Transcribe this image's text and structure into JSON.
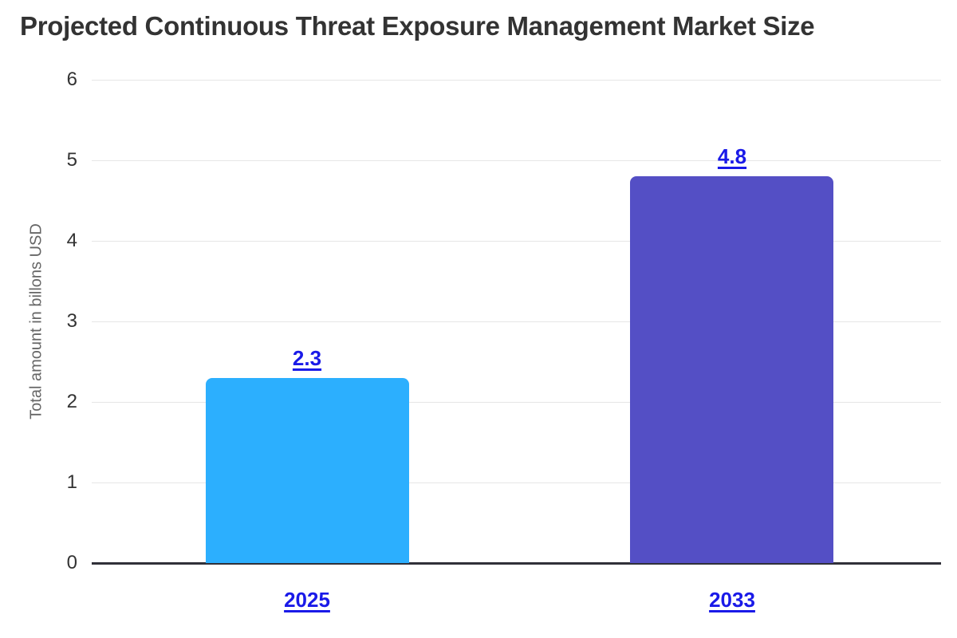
{
  "chart_data": {
    "type": "bar",
    "title": "Projected Continuous Threat Exposure Management Market Size",
    "xlabel": "",
    "ylabel": "Total amount in billons USD",
    "categories": [
      "2025",
      "2033"
    ],
    "values": [
      2.3,
      4.8
    ],
    "data_labels": [
      "2.3",
      "4.8"
    ],
    "ylim": [
      0,
      6
    ],
    "yticks": [
      "0",
      "1",
      "2",
      "3",
      "4",
      "5",
      "6"
    ],
    "grid": true,
    "legend": false,
    "bar_colors": [
      "#2caffe",
      "#544fc5"
    ],
    "label_color": "#1a1ae8",
    "title_color": "#333333",
    "tick_label_color": "#333333",
    "ylabel_color": "#666666",
    "gridline_color": "#e6e6e6",
    "axis_line_color": "#303038",
    "background_color": "#ffffff"
  }
}
